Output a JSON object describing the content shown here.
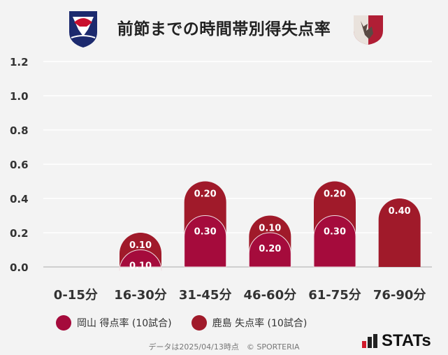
{
  "title": "前節までの時間帯別得失点率",
  "logos": {
    "left": "fagiano-okayama-crest",
    "right": "kashima-antlers-crest"
  },
  "colors": {
    "okayama": "#a50b3c",
    "kashima": "#a01a2a",
    "grid": "#ffffff",
    "background": "#f3f3f3"
  },
  "chart_data": {
    "type": "bar",
    "stacked": true,
    "categories": [
      "0-15分",
      "16-30分",
      "31-45分",
      "46-60分",
      "61-75分",
      "76-90分"
    ],
    "series": [
      {
        "name": "岡山 得点率 (10試合)",
        "values": [
          0,
          0.1,
          0.3,
          0.2,
          0.3,
          0
        ]
      },
      {
        "name": "鹿島 失点率 (10試合)",
        "values": [
          0,
          0.1,
          0.2,
          0.1,
          0.2,
          0.4
        ]
      }
    ],
    "ylim": [
      0,
      1.2
    ],
    "yticks": [
      "0.0",
      "0.2",
      "0.4",
      "0.6",
      "0.8",
      "1.0",
      "1.2"
    ],
    "grid": true,
    "legend_position": "bottom-left"
  },
  "legend": [
    {
      "label": "岡山 得点率 (10試合)"
    },
    {
      "label": "鹿島 失点率 (10試合)"
    }
  ],
  "footer": "データは2025/04/13時点　© SPORTERIA",
  "brand": "STATs"
}
